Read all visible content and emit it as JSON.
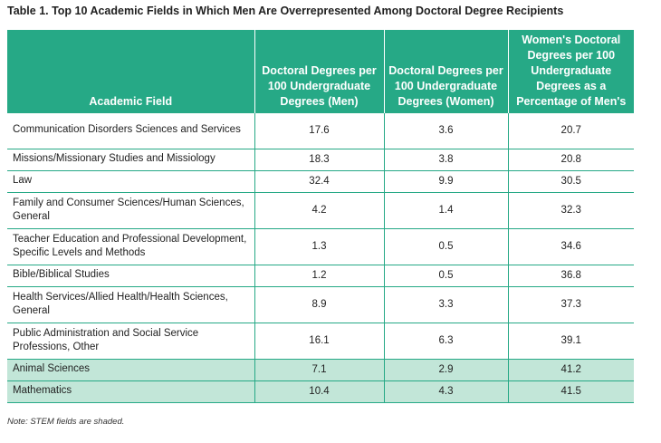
{
  "title": "Table 1. Top 10 Academic Fields in Which Men Are Overrepresented Among Doctoral Degree Recipients",
  "headers": {
    "field": "Academic Field",
    "men": "Doctoral Degrees per 100 Undergraduate Degrees (Men)",
    "women": "Doctoral Degrees per 100 Undergraduate Degrees (Women)",
    "pct": "Women's Doctoral Degrees per 100 Undergraduate Degrees as a Percentage of Men's"
  },
  "rows": [
    {
      "field": "Communication Disorders Sciences and Services",
      "men": "17.6",
      "women": "3.6",
      "pct": "20.7",
      "stem": false
    },
    {
      "field": "Missions/Missionary Studies and Missiology",
      "men": "18.3",
      "women": "3.8",
      "pct": "20.8",
      "stem": false
    },
    {
      "field": "Law",
      "men": "32.4",
      "women": "9.9",
      "pct": "30.5",
      "stem": false
    },
    {
      "field": "Family and Consumer Sciences/Human Sciences, General",
      "men": "4.2",
      "women": "1.4",
      "pct": "32.3",
      "stem": false
    },
    {
      "field": "Teacher Education and Professional Development, Specific Levels and Methods",
      "men": "1.3",
      "women": "0.5",
      "pct": "34.6",
      "stem": false
    },
    {
      "field": "Bible/Biblical Studies",
      "men": "1.2",
      "women": "0.5",
      "pct": "36.8",
      "stem": false
    },
    {
      "field": "Health Services/Allied Health/Health Sciences, General",
      "men": "8.9",
      "women": "3.3",
      "pct": "37.3",
      "stem": false
    },
    {
      "field": "Public Administration and Social Service Professions, Other",
      "men": "16.1",
      "women": "6.3",
      "pct": "39.1",
      "stem": false
    },
    {
      "field": "Animal Sciences",
      "men": "7.1",
      "women": "2.9",
      "pct": "41.2",
      "stem": true
    },
    {
      "field": "Mathematics",
      "men": "10.4",
      "women": "4.3",
      "pct": "41.5",
      "stem": true
    }
  ],
  "note": "Note: STEM fields are shaded.",
  "colors": {
    "header_bg": "#26a986",
    "stem_shade": "#c2e6d8",
    "rule": "#26a986"
  }
}
